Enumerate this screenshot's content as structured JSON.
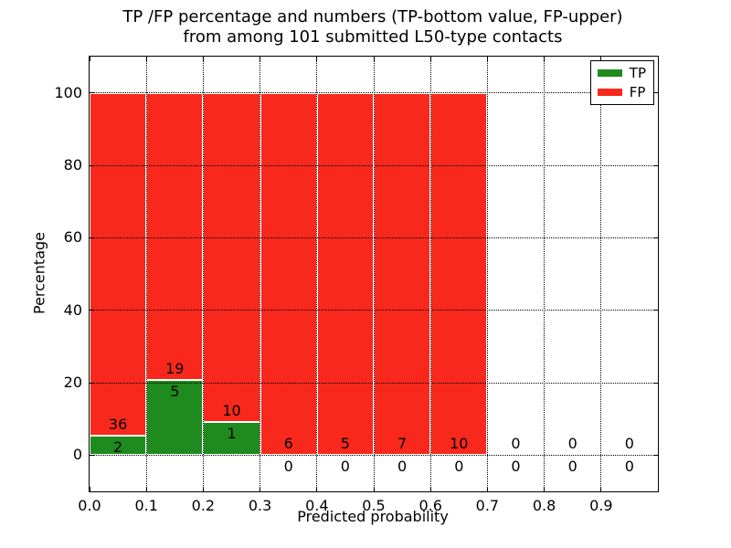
{
  "figure": {
    "title_line1": "TP /FP percentage and numbers (TP-bottom value, FP-upper)",
    "title_line2": "from among 101 submitted L50-type contacts"
  },
  "chart_data": {
    "type": "bar",
    "stacked": true,
    "title": "TP /FP percentage and numbers (TP-bottom value, FP-upper) from among 101 submitted L50-type contacts",
    "xlabel": "Predicted probability",
    "ylabel": "Percentage",
    "xlim": [
      0.0,
      1.0
    ],
    "ylim": [
      -10,
      110
    ],
    "x_ticks": [
      {
        "value": 0.0,
        "label": "0.0"
      },
      {
        "value": 0.1,
        "label": "0.1"
      },
      {
        "value": 0.2,
        "label": "0.2"
      },
      {
        "value": 0.3,
        "label": "0.3"
      },
      {
        "value": 0.4,
        "label": "0.4"
      },
      {
        "value": 0.5,
        "label": "0.5"
      },
      {
        "value": 0.6,
        "label": "0.6"
      },
      {
        "value": 0.7,
        "label": "0.7"
      },
      {
        "value": 0.8,
        "label": "0.8"
      },
      {
        "value": 0.9,
        "label": "0.9"
      }
    ],
    "y_ticks": [
      {
        "value": 0,
        "label": "0"
      },
      {
        "value": 20,
        "label": "20"
      },
      {
        "value": 40,
        "label": "40"
      },
      {
        "value": 60,
        "label": "60"
      },
      {
        "value": 80,
        "label": "80"
      },
      {
        "value": 100,
        "label": "100"
      }
    ],
    "grid": "dotted-black-above-bars",
    "bin_width": 0.1,
    "bins": [
      {
        "x0": 0.0,
        "x1": 0.1,
        "tp": 2,
        "fp": 36,
        "tp_pct": 5.26,
        "fp_pct": 94.74
      },
      {
        "x0": 0.1,
        "x1": 0.2,
        "tp": 5,
        "fp": 19,
        "tp_pct": 20.83,
        "fp_pct": 79.17
      },
      {
        "x0": 0.2,
        "x1": 0.3,
        "tp": 1,
        "fp": 10,
        "tp_pct": 9.09,
        "fp_pct": 90.91
      },
      {
        "x0": 0.3,
        "x1": 0.4,
        "tp": 0,
        "fp": 6,
        "tp_pct": 0,
        "fp_pct": 100
      },
      {
        "x0": 0.4,
        "x1": 0.5,
        "tp": 0,
        "fp": 5,
        "tp_pct": 0,
        "fp_pct": 100
      },
      {
        "x0": 0.5,
        "x1": 0.6,
        "tp": 0,
        "fp": 7,
        "tp_pct": 0,
        "fp_pct": 100
      },
      {
        "x0": 0.6,
        "x1": 0.7,
        "tp": 0,
        "fp": 10,
        "tp_pct": 0,
        "fp_pct": 100
      },
      {
        "x0": 0.7,
        "x1": 0.8,
        "tp": 0,
        "fp": 0,
        "tp_pct": 0,
        "fp_pct": 0
      },
      {
        "x0": 0.8,
        "x1": 0.9,
        "tp": 0,
        "fp": 0,
        "tp_pct": 0,
        "fp_pct": 0
      },
      {
        "x0": 0.9,
        "x1": 1.0,
        "tp": 0,
        "fp": 0,
        "tp_pct": 0,
        "fp_pct": 0
      }
    ],
    "series": [
      {
        "name": "TP",
        "color": "#1f8b1f",
        "counts": [
          2,
          5,
          1,
          0,
          0,
          0,
          0,
          0,
          0,
          0
        ]
      },
      {
        "name": "FP",
        "color": "#f8281d",
        "counts": [
          36,
          19,
          10,
          6,
          5,
          7,
          10,
          0,
          0,
          0
        ]
      }
    ],
    "legend": {
      "position": "upper right",
      "entries": [
        {
          "label": "TP",
          "color": "#1f8b1f"
        },
        {
          "label": "FP",
          "color": "#f8281d"
        }
      ]
    },
    "total_contacts": 101
  },
  "colors": {
    "tp": "#1f8b1f",
    "fp": "#f8281d",
    "bar_edge": "#ffffff",
    "grid": "#000000",
    "text": "#000000",
    "background": "#ffffff"
  }
}
